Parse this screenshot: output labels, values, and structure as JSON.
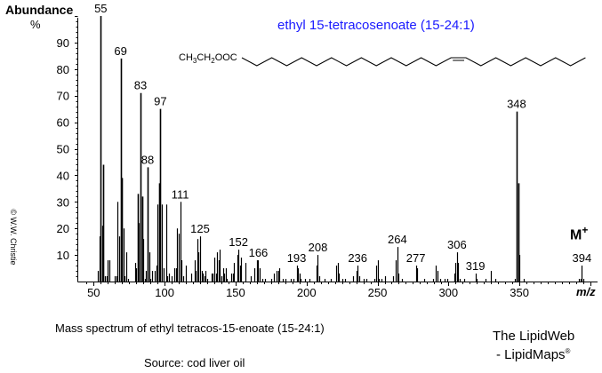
{
  "chart_data": {
    "type": "bar",
    "title": "ethyl 15-tetracosenoate  (15-24:1)",
    "ylabel": "Abundance",
    "yunit": "%",
    "xlabel": "m/z",
    "xlim": [
      40,
      405
    ],
    "ylim": [
      0,
      100
    ],
    "xticks": [
      50,
      100,
      150,
      200,
      250,
      300,
      350
    ],
    "yticks": [
      10,
      20,
      30,
      40,
      50,
      60,
      70,
      80,
      90
    ],
    "grid": false,
    "bar_color": "#000000",
    "title_color": "#1a1aff",
    "peaks": [
      [
        53,
        4
      ],
      [
        54,
        17
      ],
      [
        55,
        100
      ],
      [
        56,
        21
      ],
      [
        57,
        44
      ],
      [
        58,
        2
      ],
      [
        59,
        2
      ],
      [
        60,
        8
      ],
      [
        61,
        8
      ],
      [
        65,
        2
      ],
      [
        66,
        2
      ],
      [
        67,
        30
      ],
      [
        68,
        17
      ],
      [
        69,
        84
      ],
      [
        70,
        39
      ],
      [
        71,
        20
      ],
      [
        72,
        2
      ],
      [
        73,
        11
      ],
      [
        74,
        1
      ],
      [
        79,
        7
      ],
      [
        80,
        5
      ],
      [
        81,
        33
      ],
      [
        82,
        22
      ],
      [
        83,
        71
      ],
      [
        84,
        32
      ],
      [
        85,
        16
      ],
      [
        86,
        1
      ],
      [
        87,
        4
      ],
      [
        88,
        43
      ],
      [
        89,
        11
      ],
      [
        90,
        1
      ],
      [
        91,
        4
      ],
      [
        93,
        4
      ],
      [
        94,
        6
      ],
      [
        95,
        29
      ],
      [
        96,
        37
      ],
      [
        97,
        65
      ],
      [
        98,
        29
      ],
      [
        99,
        5
      ],
      [
        101,
        29
      ],
      [
        102,
        2
      ],
      [
        103,
        3
      ],
      [
        105,
        2
      ],
      [
        107,
        5
      ],
      [
        108,
        5
      ],
      [
        109,
        20
      ],
      [
        110,
        18
      ],
      [
        111,
        30
      ],
      [
        112,
        8
      ],
      [
        113,
        2
      ],
      [
        115,
        6
      ],
      [
        119,
        3
      ],
      [
        121,
        8
      ],
      [
        122,
        4
      ],
      [
        123,
        16
      ],
      [
        124,
        11
      ],
      [
        125,
        17
      ],
      [
        126,
        4
      ],
      [
        127,
        3
      ],
      [
        128,
        2
      ],
      [
        129,
        4
      ],
      [
        130,
        1
      ],
      [
        133,
        3
      ],
      [
        134,
        3
      ],
      [
        135,
        9
      ],
      [
        136,
        3
      ],
      [
        137,
        11
      ],
      [
        138,
        8
      ],
      [
        139,
        12
      ],
      [
        140,
        2
      ],
      [
        141,
        5
      ],
      [
        142,
        3
      ],
      [
        143,
        5
      ],
      [
        144,
        1
      ],
      [
        147,
        3
      ],
      [
        148,
        3
      ],
      [
        149,
        7
      ],
      [
        151,
        10
      ],
      [
        152,
        12
      ],
      [
        153,
        6
      ],
      [
        154,
        9
      ],
      [
        157,
        7
      ],
      [
        161,
        2
      ],
      [
        163,
        5
      ],
      [
        165,
        8
      ],
      [
        166,
        8
      ],
      [
        167,
        5
      ],
      [
        169,
        1
      ],
      [
        171,
        1
      ],
      [
        175,
        1
      ],
      [
        177,
        3
      ],
      [
        179,
        4
      ],
      [
        180,
        4
      ],
      [
        181,
        5
      ],
      [
        183,
        1
      ],
      [
        185,
        1
      ],
      [
        189,
        1
      ],
      [
        191,
        1
      ],
      [
        193,
        6
      ],
      [
        194,
        5
      ],
      [
        195,
        3
      ],
      [
        196,
        1
      ],
      [
        199,
        1
      ],
      [
        202,
        1
      ],
      [
        207,
        6
      ],
      [
        208,
        10
      ],
      [
        209,
        2
      ],
      [
        213,
        1
      ],
      [
        217,
        1
      ],
      [
        221,
        6
      ],
      [
        222,
        7
      ],
      [
        223,
        3
      ],
      [
        225,
        1
      ],
      [
        227,
        1
      ],
      [
        233,
        2
      ],
      [
        235,
        4
      ],
      [
        236,
        6
      ],
      [
        237,
        2
      ],
      [
        240,
        1
      ],
      [
        242,
        1
      ],
      [
        248,
        1
      ],
      [
        249,
        6
      ],
      [
        250,
        8
      ],
      [
        251,
        1
      ],
      [
        253,
        1
      ],
      [
        255,
        2
      ],
      [
        261,
        2
      ],
      [
        263,
        8
      ],
      [
        264,
        13
      ],
      [
        265,
        3
      ],
      [
        267,
        1
      ],
      [
        277,
        6
      ],
      [
        278,
        5
      ],
      [
        283,
        1
      ],
      [
        289,
        1
      ],
      [
        291,
        6
      ],
      [
        292,
        4
      ],
      [
        294,
        1
      ],
      [
        297,
        1
      ],
      [
        299,
        1
      ],
      [
        304,
        3
      ],
      [
        305,
        7
      ],
      [
        306,
        11
      ],
      [
        307,
        7
      ],
      [
        308,
        1
      ],
      [
        311,
        1
      ],
      [
        319,
        3
      ],
      [
        320,
        1
      ],
      [
        326,
        1
      ],
      [
        330,
        4
      ],
      [
        333,
        1
      ],
      [
        347,
        1
      ],
      [
        348,
        64
      ],
      [
        349,
        37
      ],
      [
        350,
        10
      ],
      [
        353,
        1
      ],
      [
        392,
        1
      ],
      [
        393,
        1
      ],
      [
        394,
        6
      ],
      [
        395,
        1
      ]
    ],
    "peak_labels": [
      "55",
      "69",
      "83",
      "88",
      "97",
      "111",
      "125",
      "152",
      "166",
      "193",
      "208",
      "236",
      "264",
      "277",
      "306",
      "319",
      "348",
      "394"
    ],
    "annotations": {
      "molecular_ion": "M",
      "molecular_ion_sup": "+"
    }
  },
  "structure": {
    "formula_parts": [
      "CH",
      "3",
      "CH",
      "2",
      "OOC"
    ],
    "double_bond_position": 15,
    "chain_carbons": 24
  },
  "caption": "Mass spectrum of ethyl tetracos-15-enoate (15-24:1)",
  "source": "Source:  cod liver oil",
  "brand": {
    "line1": "The LipidWeb",
    "line2": "- LipidMaps",
    "mark": "®"
  },
  "copyright": "© W.W. Christie"
}
